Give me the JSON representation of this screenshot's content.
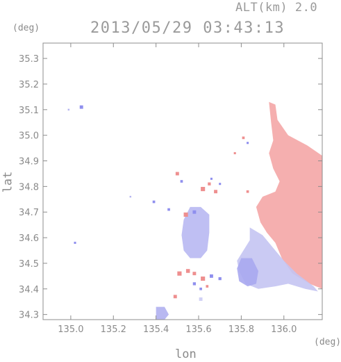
{
  "header": {
    "alt_label": "ALT(km) 2.0",
    "timestamp": "2013/05/29 03:43:13"
  },
  "axes": {
    "y_unit": "(deg)",
    "x_unit": "(deg)",
    "xlabel": "lon",
    "ylabel": "lat"
  },
  "colors": {
    "frame": "#8c8c8c",
    "tick_text": "#8a8a8a",
    "approaching": "#9b9bf0",
    "receding": "#f29a9a",
    "near_zero": "#d6d6f5"
  },
  "chart_data": {
    "type": "heatmap",
    "xlim": [
      134.87,
      136.18
    ],
    "ylim": [
      34.28,
      35.36
    ],
    "xticks": [
      135.0,
      135.2,
      135.4,
      135.6,
      135.8,
      136.0
    ],
    "xtick_labels": [
      "135.0",
      "135.2",
      "135.4",
      "135.6",
      "135.8",
      "136.0"
    ],
    "yticks": [
      34.3,
      34.4,
      34.5,
      34.6,
      34.7,
      34.8,
      34.9,
      35.0,
      35.1,
      35.2,
      35.3
    ],
    "ytick_labels": [
      "34.3",
      "34.4",
      "34.5",
      "34.6",
      "34.7",
      "34.8",
      "34.9",
      "35.0",
      "35.1",
      "35.2",
      "35.3"
    ],
    "grid": false,
    "regions": [
      {
        "name": "receding",
        "color": "#f4a6a6",
        "polygon": [
          [
            135.93,
            35.13
          ],
          [
            135.96,
            35.12
          ],
          [
            135.97,
            35.06
          ],
          [
            136.02,
            35.0
          ],
          [
            136.11,
            34.96
          ],
          [
            136.18,
            34.92
          ],
          [
            136.18,
            34.4
          ],
          [
            136.12,
            34.42
          ],
          [
            136.04,
            34.46
          ],
          [
            135.99,
            34.52
          ],
          [
            135.96,
            34.58
          ],
          [
            135.92,
            34.62
          ],
          [
            135.89,
            34.66
          ],
          [
            135.87,
            34.72
          ],
          [
            135.9,
            34.76
          ],
          [
            135.96,
            34.78
          ],
          [
            135.98,
            34.82
          ],
          [
            135.95,
            34.87
          ],
          [
            135.93,
            34.93
          ],
          [
            135.95,
            34.98
          ],
          [
            135.94,
            35.05
          ]
        ]
      },
      {
        "name": "approaching-east",
        "color": "#c4c4f2",
        "polygon": [
          [
            135.84,
            34.64
          ],
          [
            135.9,
            34.61
          ],
          [
            135.95,
            34.56
          ],
          [
            136.0,
            34.51
          ],
          [
            136.06,
            34.46
          ],
          [
            136.14,
            34.41
          ],
          [
            136.16,
            34.39
          ],
          [
            136.1,
            34.4
          ],
          [
            136.02,
            34.42
          ],
          [
            135.96,
            34.41
          ],
          [
            135.88,
            34.4
          ],
          [
            135.82,
            34.42
          ],
          [
            135.79,
            34.47
          ],
          [
            135.78,
            34.51
          ],
          [
            135.81,
            34.55
          ],
          [
            135.84,
            34.59
          ]
        ]
      },
      {
        "name": "approaching-core",
        "color": "#a8a8f0",
        "polygon": [
          [
            135.8,
            34.52
          ],
          [
            135.85,
            34.52
          ],
          [
            135.88,
            34.47
          ],
          [
            135.87,
            34.42
          ],
          [
            135.83,
            34.41
          ],
          [
            135.79,
            34.43
          ],
          [
            135.78,
            34.48
          ]
        ]
      },
      {
        "name": "approaching-central",
        "color": "#b8b8f2",
        "polygon": [
          [
            135.56,
            34.72
          ],
          [
            135.61,
            34.72
          ],
          [
            135.65,
            34.69
          ],
          [
            135.65,
            34.62
          ],
          [
            135.64,
            34.55
          ],
          [
            135.61,
            34.52
          ],
          [
            135.56,
            34.52
          ],
          [
            135.53,
            34.55
          ],
          [
            135.52,
            34.61
          ],
          [
            135.53,
            34.67
          ]
        ]
      },
      {
        "name": "approaching-south",
        "color": "#b0b0f0",
        "polygon": [
          [
            135.4,
            34.33
          ],
          [
            135.44,
            34.33
          ],
          [
            135.46,
            34.3
          ],
          [
            135.44,
            34.28
          ],
          [
            135.4,
            34.28
          ]
        ]
      }
    ],
    "speckles": [
      {
        "lon": 135.05,
        "lat": 35.11,
        "color": "#8f8fee",
        "r": 0.008
      },
      {
        "lon": 134.99,
        "lat": 35.1,
        "color": "#b5b5f0",
        "r": 0.004
      },
      {
        "lon": 135.02,
        "lat": 34.58,
        "color": "#8f8fee",
        "r": 0.005
      },
      {
        "lon": 135.28,
        "lat": 34.76,
        "color": "#b5b5f0",
        "r": 0.004
      },
      {
        "lon": 135.39,
        "lat": 34.74,
        "color": "#8f8fee",
        "r": 0.006
      },
      {
        "lon": 135.5,
        "lat": 34.85,
        "color": "#ee8f8f",
        "r": 0.008
      },
      {
        "lon": 135.52,
        "lat": 34.82,
        "color": "#8f8fee",
        "r": 0.006
      },
      {
        "lon": 135.62,
        "lat": 34.79,
        "color": "#ee8f8f",
        "r": 0.01
      },
      {
        "lon": 135.65,
        "lat": 34.81,
        "color": "#ee8f8f",
        "r": 0.007
      },
      {
        "lon": 135.68,
        "lat": 34.78,
        "color": "#ee8f8f",
        "r": 0.008
      },
      {
        "lon": 135.66,
        "lat": 34.83,
        "color": "#8f8fee",
        "r": 0.005
      },
      {
        "lon": 135.54,
        "lat": 34.69,
        "color": "#ee8f8f",
        "r": 0.01
      },
      {
        "lon": 135.58,
        "lat": 34.7,
        "color": "#8f8fee",
        "r": 0.008
      },
      {
        "lon": 135.51,
        "lat": 34.46,
        "color": "#ee8f8f",
        "r": 0.01
      },
      {
        "lon": 135.55,
        "lat": 34.47,
        "color": "#ee8f8f",
        "r": 0.009
      },
      {
        "lon": 135.58,
        "lat": 34.46,
        "color": "#ee8f8f",
        "r": 0.008
      },
      {
        "lon": 135.62,
        "lat": 34.44,
        "color": "#ee8f8f",
        "r": 0.01
      },
      {
        "lon": 135.66,
        "lat": 34.45,
        "color": "#8f8fee",
        "r": 0.008
      },
      {
        "lon": 135.7,
        "lat": 34.44,
        "color": "#8f8fee",
        "r": 0.007
      },
      {
        "lon": 135.58,
        "lat": 34.42,
        "color": "#8f8fee",
        "r": 0.007
      },
      {
        "lon": 135.61,
        "lat": 34.4,
        "color": "#8f8fee",
        "r": 0.006
      },
      {
        "lon": 135.64,
        "lat": 34.41,
        "color": "#ee8f8f",
        "r": 0.006
      },
      {
        "lon": 135.49,
        "lat": 34.37,
        "color": "#ee8f8f",
        "r": 0.008
      },
      {
        "lon": 135.77,
        "lat": 34.93,
        "color": "#ee8f8f",
        "r": 0.005
      },
      {
        "lon": 135.81,
        "lat": 34.99,
        "color": "#ee8f8f",
        "r": 0.006
      },
      {
        "lon": 135.83,
        "lat": 34.97,
        "color": "#8f8fee",
        "r": 0.005
      },
      {
        "lon": 135.83,
        "lat": 34.78,
        "color": "#ee8f8f",
        "r": 0.006
      },
      {
        "lon": 135.7,
        "lat": 34.81,
        "color": "#8f8fee",
        "r": 0.005
      },
      {
        "lon": 135.46,
        "lat": 34.71,
        "color": "#8f8fee",
        "r": 0.006
      },
      {
        "lon": 135.61,
        "lat": 34.36,
        "color": "#d0d0f5",
        "r": 0.008
      }
    ]
  }
}
